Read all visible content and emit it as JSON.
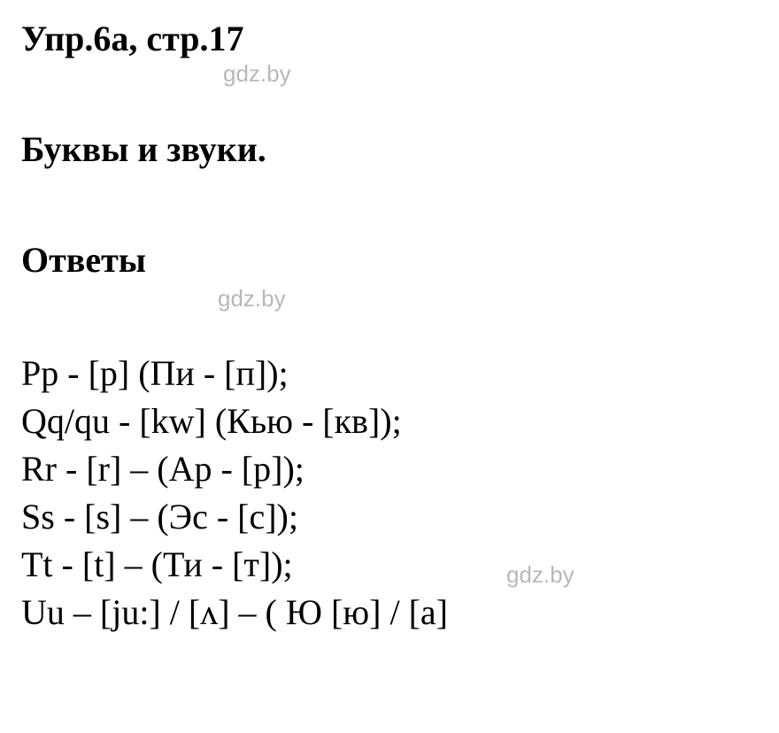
{
  "header": {
    "title": "Упр.6а, стр.17"
  },
  "watermark": {
    "text": "gdz.by"
  },
  "subtitle": {
    "text": "Буквы и звуки."
  },
  "answers": {
    "label": "Ответы",
    "lines": [
      "Pp - [p] (Пи - [п]);",
      "Qq/qu - [kw] (Кью - [кв]);",
      "Rr - [r] – (Ар - [р]);",
      "Ss - [s] – (Эс - [с]);",
      "Tt - [t] – (Ти - [т]);",
      "Uu – [ju:] / [ʌ] – ( Ю [ю] / [а]"
    ]
  },
  "style": {
    "background_color": "#ffffff",
    "text_color": "#000000",
    "watermark_color": "#b8b8b8",
    "font_family": "Times New Roman",
    "heading_fontsize": 40,
    "body_fontsize": 40,
    "watermark_fontsize": 26
  }
}
